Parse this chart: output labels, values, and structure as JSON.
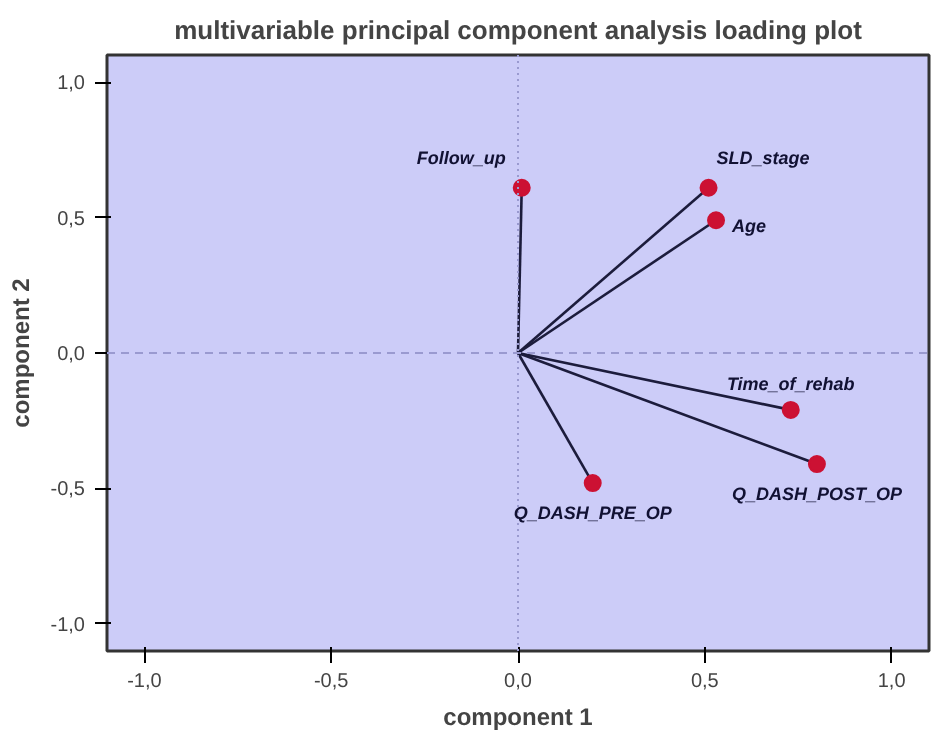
{
  "chart_data": {
    "type": "line",
    "title": "multivariable principal component analysis loading plot",
    "xlabel": "component 1",
    "ylabel": "component 2",
    "series": [
      {
        "marker": "none",
        "color": "#1c1c3c",
        "x": [
          0,
          0.01
        ],
        "values": [
          0,
          0.61
        ]
      },
      {
        "marker": "none",
        "color": "#1c1c3c",
        "x": [
          0,
          0.51
        ],
        "values": [
          0,
          0.61
        ]
      },
      {
        "marker": "none",
        "color": "#1c1c3c",
        "x": [
          0,
          0.53
        ],
        "values": [
          0,
          0.49
        ]
      },
      {
        "marker": "none",
        "color": "#1c1c3c",
        "x": [
          0,
          0.73
        ],
        "values": [
          0,
          -0.21
        ]
      },
      {
        "marker": "none",
        "color": "#1c1c3c",
        "x": [
          0,
          0.8
        ],
        "values": [
          0,
          -0.41
        ]
      },
      {
        "marker": "none",
        "color": "#1c1c3c",
        "x": [
          0,
          0.2
        ],
        "values": [
          0,
          -0.48
        ]
      },
      {
        "type": "scatter",
        "color": "#cc1133",
        "x": [
          0.01,
          0.51,
          0.53,
          0.73,
          0.8,
          0.2
        ],
        "values": [
          0.61,
          0.61,
          0.49,
          -0.21,
          -0.41,
          -0.48
        ]
      }
    ],
    "annotations": [
      {
        "text": "Follow_up",
        "x": 0.01,
        "y": 0.61
      },
      {
        "text": "SLD_stage",
        "x": 0.51,
        "y": 0.61
      },
      {
        "text": "Age",
        "x": 0.53,
        "y": 0.49
      },
      {
        "text": "Time_of_rehab",
        "x": 0.73,
        "y": -0.21
      },
      {
        "text": "Q_DASH_POST_OP",
        "x": 0.8,
        "y": -0.41
      },
      {
        "text": "Q_DASH_PRE_OP",
        "x": 0.2,
        "y": -0.48
      }
    ],
    "xlim": [
      -1.1,
      1.1
    ],
    "ylim": [
      -1.1,
      1.1
    ],
    "xticks": [
      {
        "value": -1,
        "label": "-1,0"
      },
      {
        "value": -0.5,
        "label": "-0,5"
      },
      {
        "value": 0,
        "label": "0,0"
      },
      {
        "value": 0.5,
        "label": "0,5"
      },
      {
        "value": 1,
        "label": "1,0"
      }
    ],
    "yticks": [
      {
        "value": -1,
        "label": "-1,0"
      },
      {
        "value": -0.5,
        "label": "-0,5"
      },
      {
        "value": 0,
        "label": "0,0"
      },
      {
        "value": 0.5,
        "label": "0,5"
      },
      {
        "value": 1,
        "label": "1,0"
      }
    ],
    "ref_lines": [
      {
        "axis": "x",
        "value": 0,
        "color": "#9a9ad0",
        "line_style": "dotted"
      },
      {
        "axis": "y",
        "value": 0,
        "color": "#9a9ad0",
        "line_style": "dashed"
      }
    ],
    "marker": "circle",
    "grid": false
  }
}
